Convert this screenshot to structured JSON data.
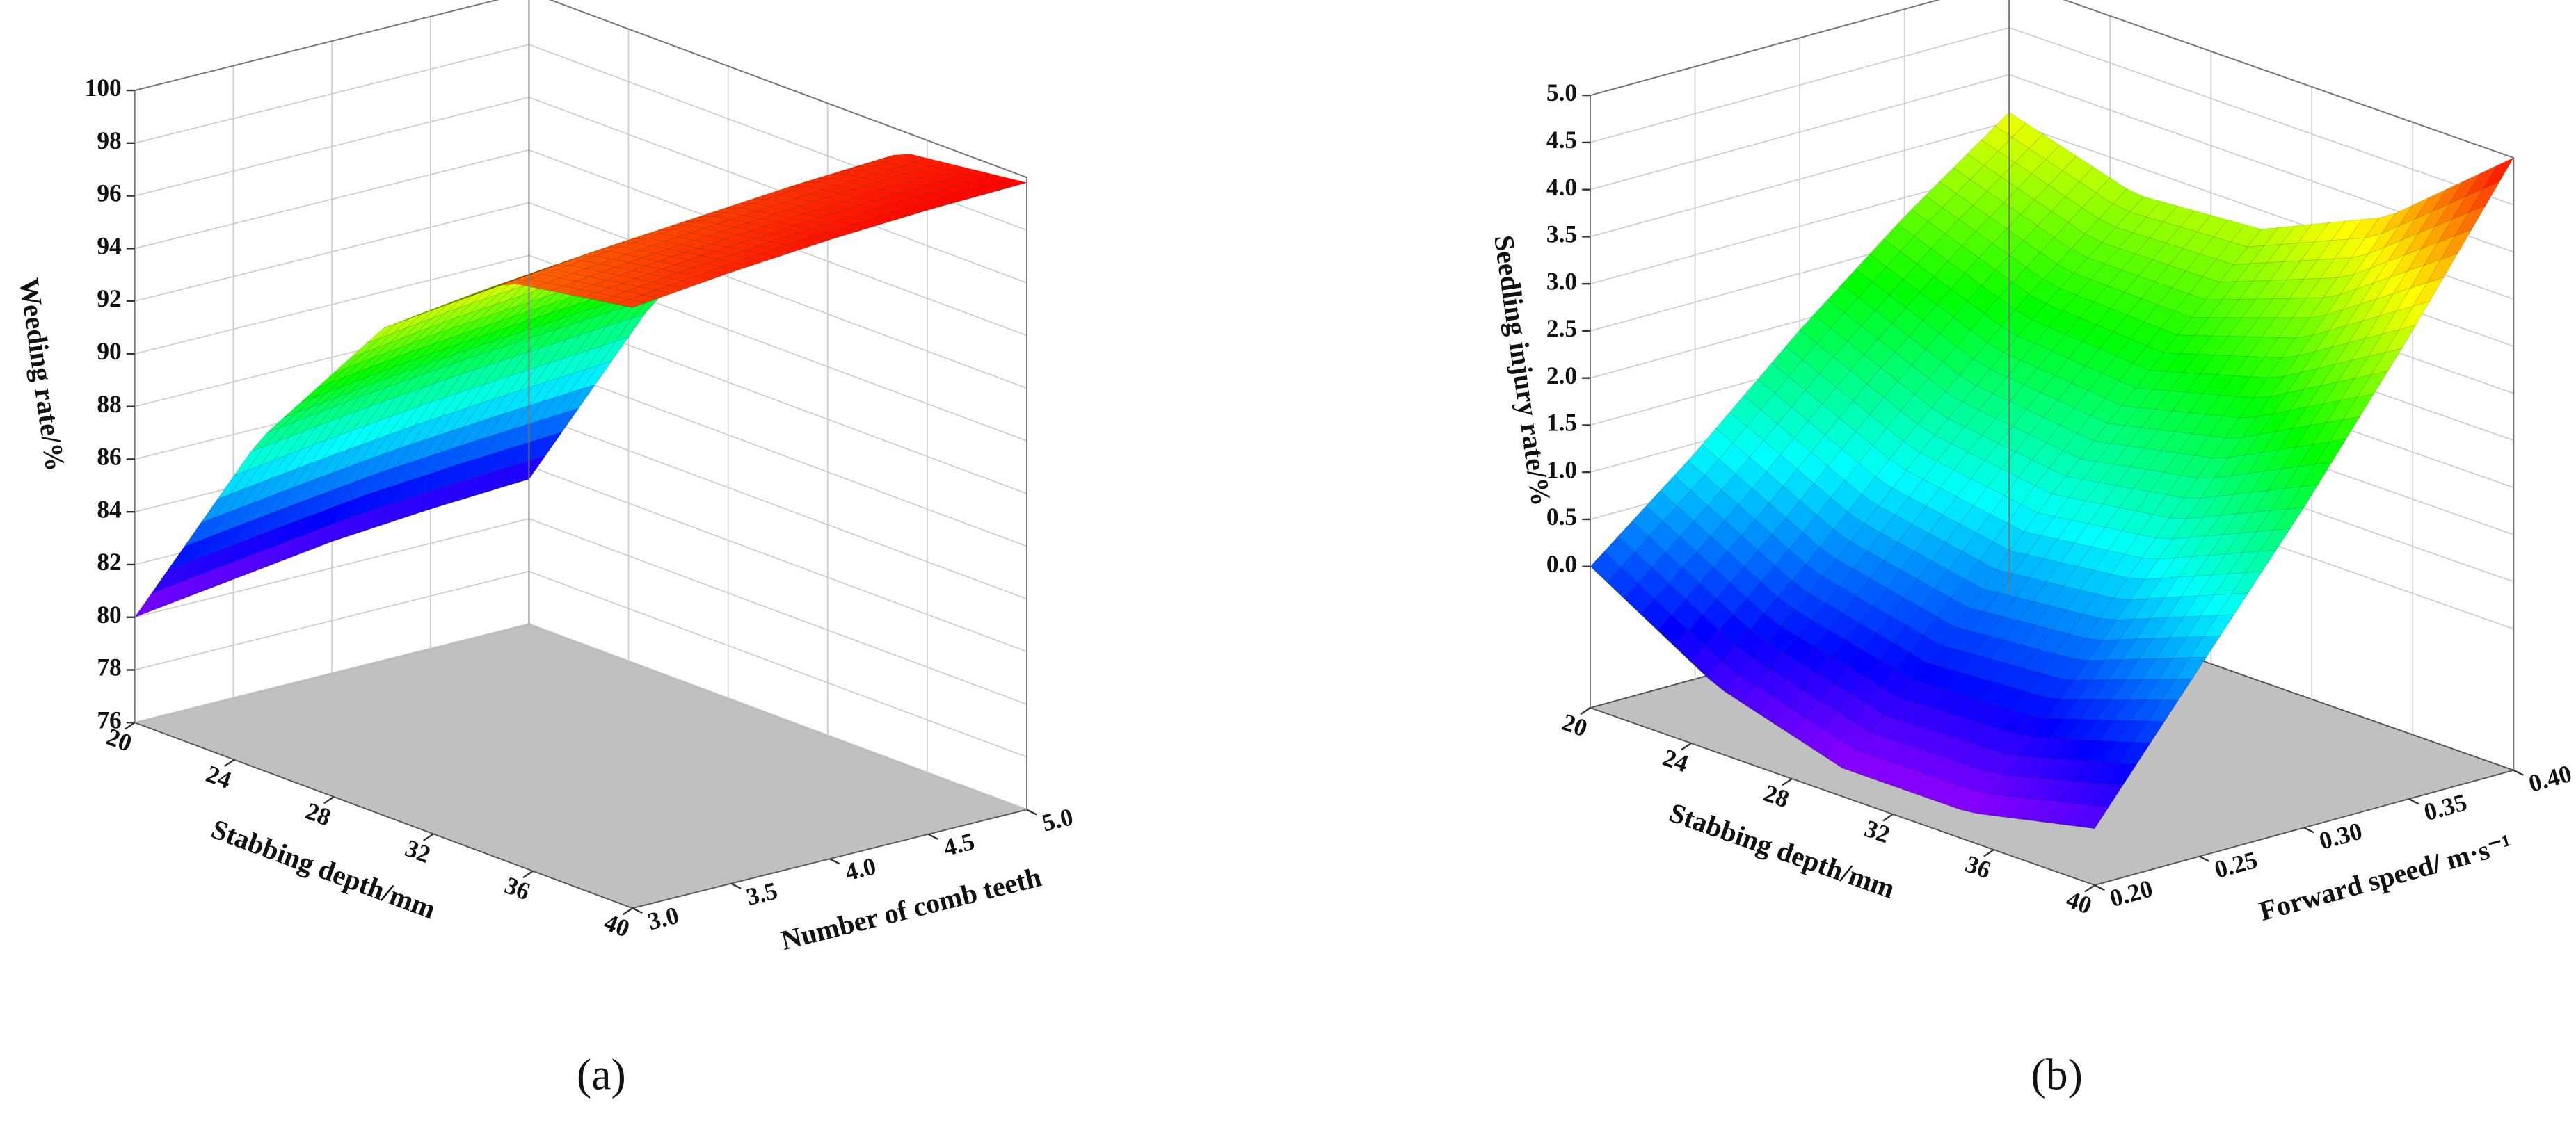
{
  "chart_data": [
    {
      "type": "surface",
      "panel_label": "(a)",
      "x_label": "Stabbing depth/mm",
      "y_label": "Number of comb teeth",
      "z_label": "Weeding rate/%",
      "x": [
        20,
        25,
        30,
        35,
        40
      ],
      "y": [
        3,
        3.5,
        4,
        4.5,
        5
      ],
      "z": [
        [
          80,
          80.5,
          81,
          81.3,
          81.5
        ],
        [
          88.5,
          89,
          89.4,
          89.7,
          90
        ],
        [
          94.5,
          95,
          95.3,
          95.6,
          95.8
        ],
        [
          98,
          98.4,
          98.7,
          99,
          99.2
        ],
        [
          98.8,
          99.2,
          99.5,
          99.7,
          99.8
        ]
      ],
      "xlim": [
        20,
        40
      ],
      "xticks": [
        20,
        24,
        28,
        32,
        36,
        40
      ],
      "ylim": [
        3,
        5
      ],
      "yticks": [
        {
          "value": 3,
          "label": "3.0"
        },
        3.5,
        {
          "value": 4,
          "label": "4.0"
        },
        4.5,
        {
          "value": 5,
          "label": "5.0"
        }
      ],
      "zlim": [
        76,
        100
      ],
      "zticks": [
        76,
        78,
        80,
        82,
        84,
        86,
        88,
        90,
        92,
        94,
        96,
        98,
        100
      ],
      "colormap": "rainbow",
      "grid": true
    },
    {
      "type": "surface",
      "panel_label": "(b)",
      "x_label": "Stabbing depth/mm",
      "y_label": "Forward speed/ m·s⁻¹",
      "z_label": "Seedling injury rate/%",
      "x": [
        20,
        25,
        30,
        35,
        40
      ],
      "y": [
        0.2,
        0.25,
        0.3,
        0.35,
        0.4
      ],
      "z": [
        [
          0,
          0.9,
          1.9,
          2.8,
          3.6
        ],
        [
          -0.8,
          0.2,
          1.3,
          2.3,
          3.2
        ],
        [
          -1.2,
          -0.1,
          1.1,
          2.2,
          3.3
        ],
        [
          -1.2,
          0,
          1.3,
          2.6,
          3.9
        ],
        [
          -0.9,
          0.5,
          1.9,
          3.4,
          5
        ]
      ],
      "xlim": [
        20,
        40
      ],
      "xticks": [
        20,
        24,
        28,
        32,
        36,
        40
      ],
      "ylim": [
        0.2,
        0.4
      ],
      "yticks": [
        {
          "value": 0.2,
          "label": "0.20"
        },
        0.25,
        {
          "value": 0.3,
          "label": "0.30"
        },
        0.35,
        {
          "value": 0.4,
          "label": "0.40"
        }
      ],
      "zlim": [
        -1.5,
        5
      ],
      "zticks": [
        {
          "value": 0,
          "label": "0.0"
        },
        0.5,
        {
          "value": 1,
          "label": "1.0"
        },
        1.5,
        {
          "value": 2,
          "label": "2.0"
        },
        2.5,
        {
          "value": 3,
          "label": "3.0"
        },
        3.5,
        {
          "value": 4,
          "label": "4.0"
        },
        4.5,
        {
          "value": 5,
          "label": "5.0"
        }
      ],
      "colormap": "rainbow",
      "grid": true
    }
  ]
}
